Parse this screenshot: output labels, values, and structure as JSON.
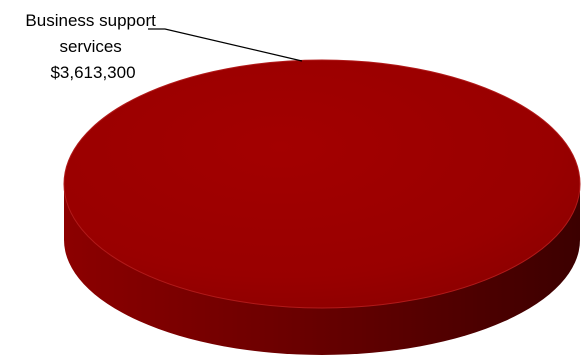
{
  "chart_data": {
    "type": "pie",
    "style": "3d",
    "title": "",
    "slices": [
      {
        "label_lines": [
          "Business support",
          "services",
          "$3,613,300"
        ],
        "value": 3613300,
        "color": "#990000"
      }
    ],
    "legend": "none"
  }
}
